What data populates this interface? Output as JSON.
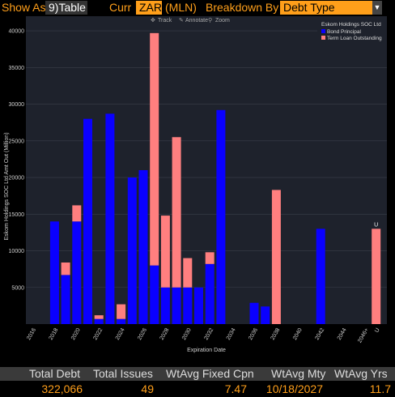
{
  "toolbar": {
    "show_as_label": "Show As",
    "show_as_value": "9)Table",
    "curr_label": "Curr",
    "curr_value": "ZAR",
    "curr_unit": "(MLN)",
    "breakdown_label": "Breakdown By",
    "breakdown_value": "Debt Type",
    "arrow_icon": "triangle-down-icon"
  },
  "chart_tools": {
    "track": "Track",
    "annotate": "Annotate",
    "zoom": "Zoom"
  },
  "colors": {
    "bond": "#0a00ff",
    "loan": "#ff7f7f",
    "background": "#1e222c",
    "grid": "#3a3f4a",
    "axis_text": "#cfcfcf"
  },
  "chart_data": {
    "type": "bar",
    "stacked": true,
    "title": "",
    "ylabel": "Eskom Holdings SOC Ltd Amt Out (Million)",
    "xlabel": "Expiration Date",
    "ylim": [
      0,
      42000
    ],
    "yticks": [
      5000,
      10000,
      15000,
      20000,
      25000,
      30000,
      35000,
      40000
    ],
    "legend": {
      "position": "top-right",
      "title": "Eskom Holdings SOC Ltd",
      "entries": [
        "Bond Principal",
        "Term Loan Outstanding"
      ]
    },
    "xtick_labels": [
      "2016",
      "2018",
      "2020",
      "2022",
      "2024",
      "2026",
      "2028",
      "2030",
      "2032",
      "2034",
      "2036",
      "2038",
      "2040",
      "2042",
      "2044",
      "2046+",
      "U"
    ],
    "categories": [
      "2016",
      "2017",
      "2018",
      "2019",
      "2020",
      "2021",
      "2022",
      "2023",
      "2024",
      "2025",
      "2026",
      "2027",
      "2028",
      "2029",
      "2030",
      "2031",
      "2032",
      "2033",
      "2034",
      "2035",
      "2036",
      "2037",
      "2038",
      "2039",
      "2040",
      "2041",
      "2042",
      "2043",
      "2044",
      "2045",
      "2046+",
      "U"
    ],
    "series": [
      {
        "name": "Bond Principal",
        "values": [
          0,
          0,
          14000,
          6700,
          14000,
          28000,
          700,
          28700,
          700,
          20000,
          21000,
          8000,
          5000,
          5000,
          5000,
          5000,
          8200,
          29200,
          0,
          0,
          2900,
          2400,
          0,
          0,
          0,
          0,
          13000,
          0,
          0,
          0,
          0,
          0
        ]
      },
      {
        "name": "Term Loan Outstanding",
        "values": [
          0,
          0,
          0,
          1700,
          2200,
          0,
          500,
          0,
          2000,
          0,
          0,
          31700,
          9800,
          20500,
          4000,
          0,
          1600,
          0,
          0,
          0,
          0,
          0,
          18300,
          0,
          0,
          0,
          0,
          0,
          0,
          0,
          0,
          13000
        ]
      }
    ],
    "annotations": [
      {
        "category": "U",
        "text": "U"
      }
    ]
  },
  "summary": {
    "headers": [
      "Total Debt",
      "Total Issues",
      "WtAvg Fixed Cpn",
      "WtAvg Mty",
      "WtAvg Yrs"
    ],
    "values": [
      "322,066",
      "49",
      "7.47",
      "10/18/2027",
      "11.7"
    ]
  }
}
